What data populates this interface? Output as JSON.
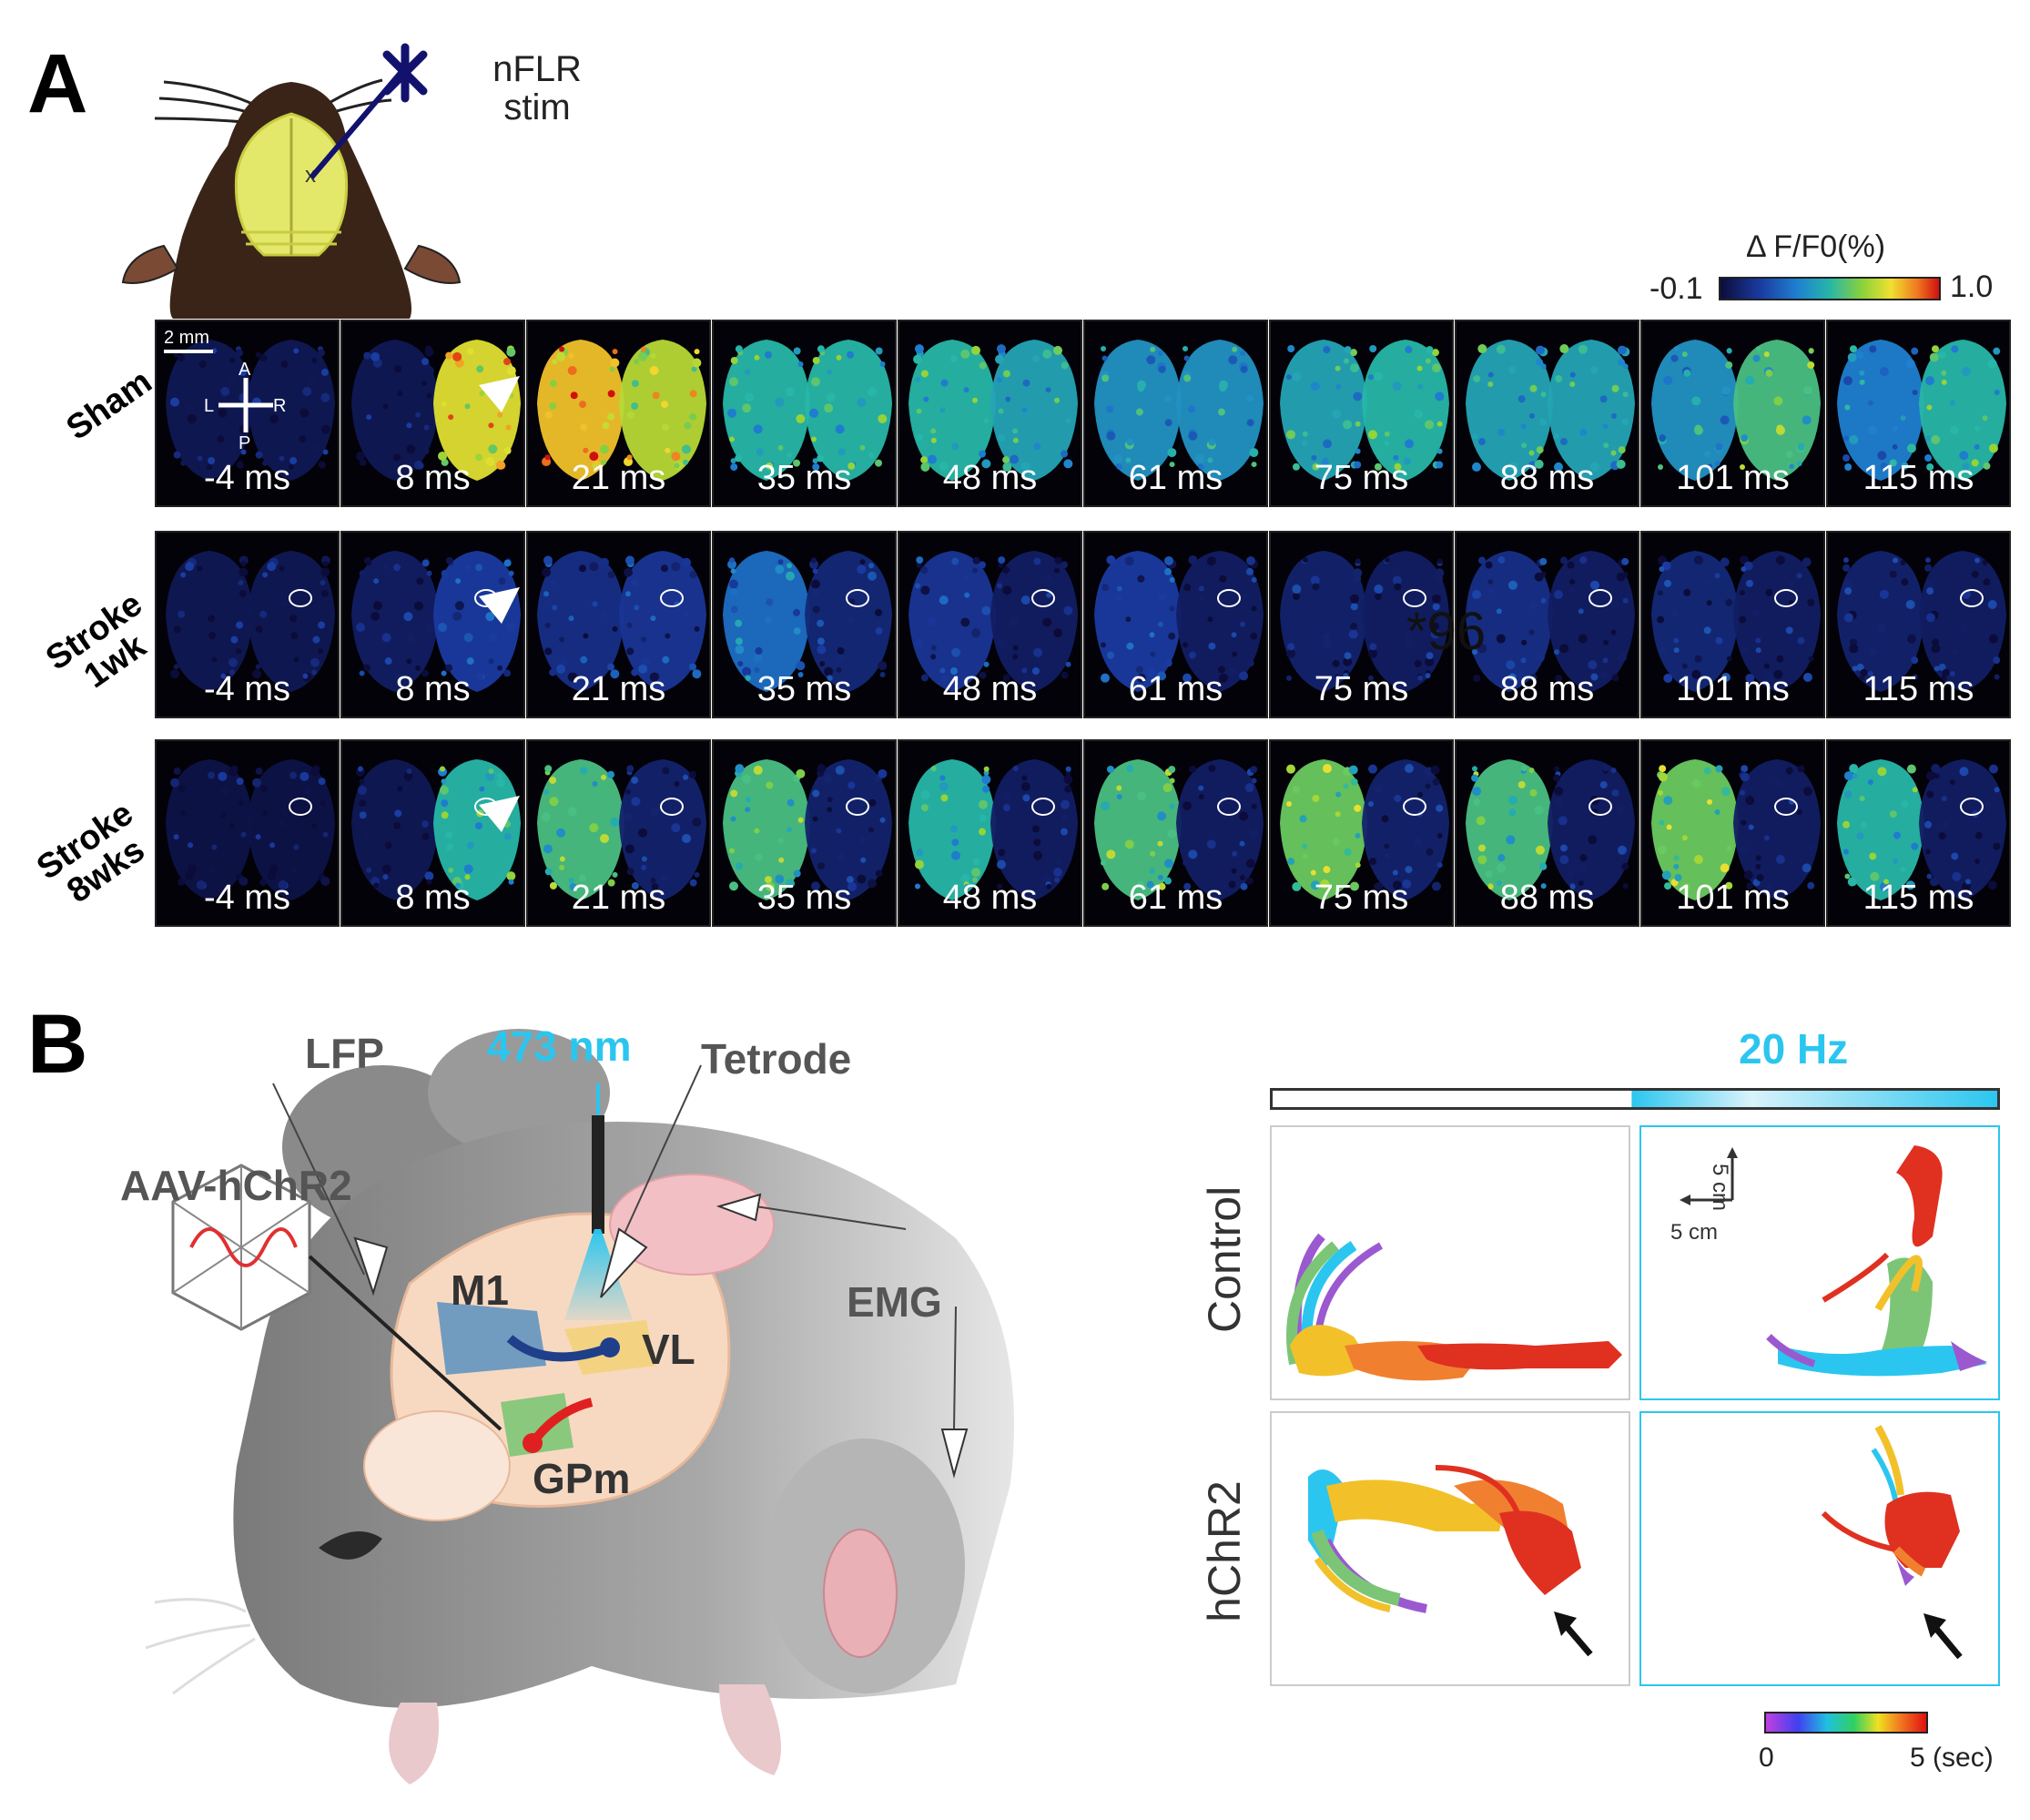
{
  "panel_a": {
    "letter": "A",
    "stim_label_line1": "nFLR",
    "stim_label_line2": "stim",
    "colorbar": {
      "title": "Δ F/F0(%)",
      "min": "-0.1",
      "max": "1.0"
    },
    "scale_bar": "2 mm",
    "orientation": {
      "a": "A",
      "p": "P",
      "l": "L",
      "r": "R"
    },
    "rows": [
      {
        "label_line1": "Sham",
        "label_line2": ""
      },
      {
        "label_line1": "Stroke",
        "label_line2": "1wk"
      },
      {
        "label_line1": "Stroke",
        "label_line2": "8wks"
      }
    ],
    "times": [
      "-4 ms",
      "8 ms",
      "21 ms",
      "35 ms",
      "48 ms",
      "61 ms",
      "75 ms",
      "88 ms",
      "101 ms",
      "115 ms"
    ],
    "stray_text": "*96",
    "activity": {
      "sham": {
        "left": [
          0.05,
          0.05,
          0.85,
          0.55,
          0.55,
          0.45,
          0.5,
          0.5,
          0.45,
          0.4
        ],
        "right": [
          0.05,
          0.8,
          0.75,
          0.55,
          0.5,
          0.45,
          0.55,
          0.5,
          0.6,
          0.55
        ]
      },
      "stroke1": {
        "left": [
          0.05,
          0.08,
          0.15,
          0.35,
          0.18,
          0.2,
          0.1,
          0.15,
          0.12,
          0.1
        ],
        "right": [
          0.05,
          0.2,
          0.18,
          0.12,
          0.08,
          0.08,
          0.08,
          0.08,
          0.08,
          0.08
        ]
      },
      "stroke8": {
        "left": [
          0.03,
          0.05,
          0.6,
          0.6,
          0.55,
          0.6,
          0.65,
          0.6,
          0.65,
          0.55
        ],
        "right": [
          0.03,
          0.55,
          0.1,
          0.1,
          0.08,
          0.08,
          0.1,
          0.08,
          0.08,
          0.08
        ]
      }
    }
  },
  "panel_b": {
    "letter": "B",
    "labels": {
      "lfp": "LFP",
      "wavelength": "473 nm",
      "tetrode": "Tetrode",
      "aav": "AAV-hChR2",
      "m1": "M1",
      "vl": "VL",
      "gpm": "GPm",
      "emg": "EMG"
    },
    "stim_freq": "20 Hz",
    "conditions": [
      "Control",
      "hChR2"
    ],
    "scale": {
      "vertical": "5 cm",
      "horizontal": "5 cm"
    },
    "time_bar": {
      "min": "0",
      "max": "5 (sec)"
    },
    "colors": {
      "light_blue": "#2bc6ef",
      "m1_blue": "#5b8fbf",
      "gpm_green": "#7cc576",
      "vl_yellow": "#f2d27a",
      "red": "#e02020"
    }
  }
}
